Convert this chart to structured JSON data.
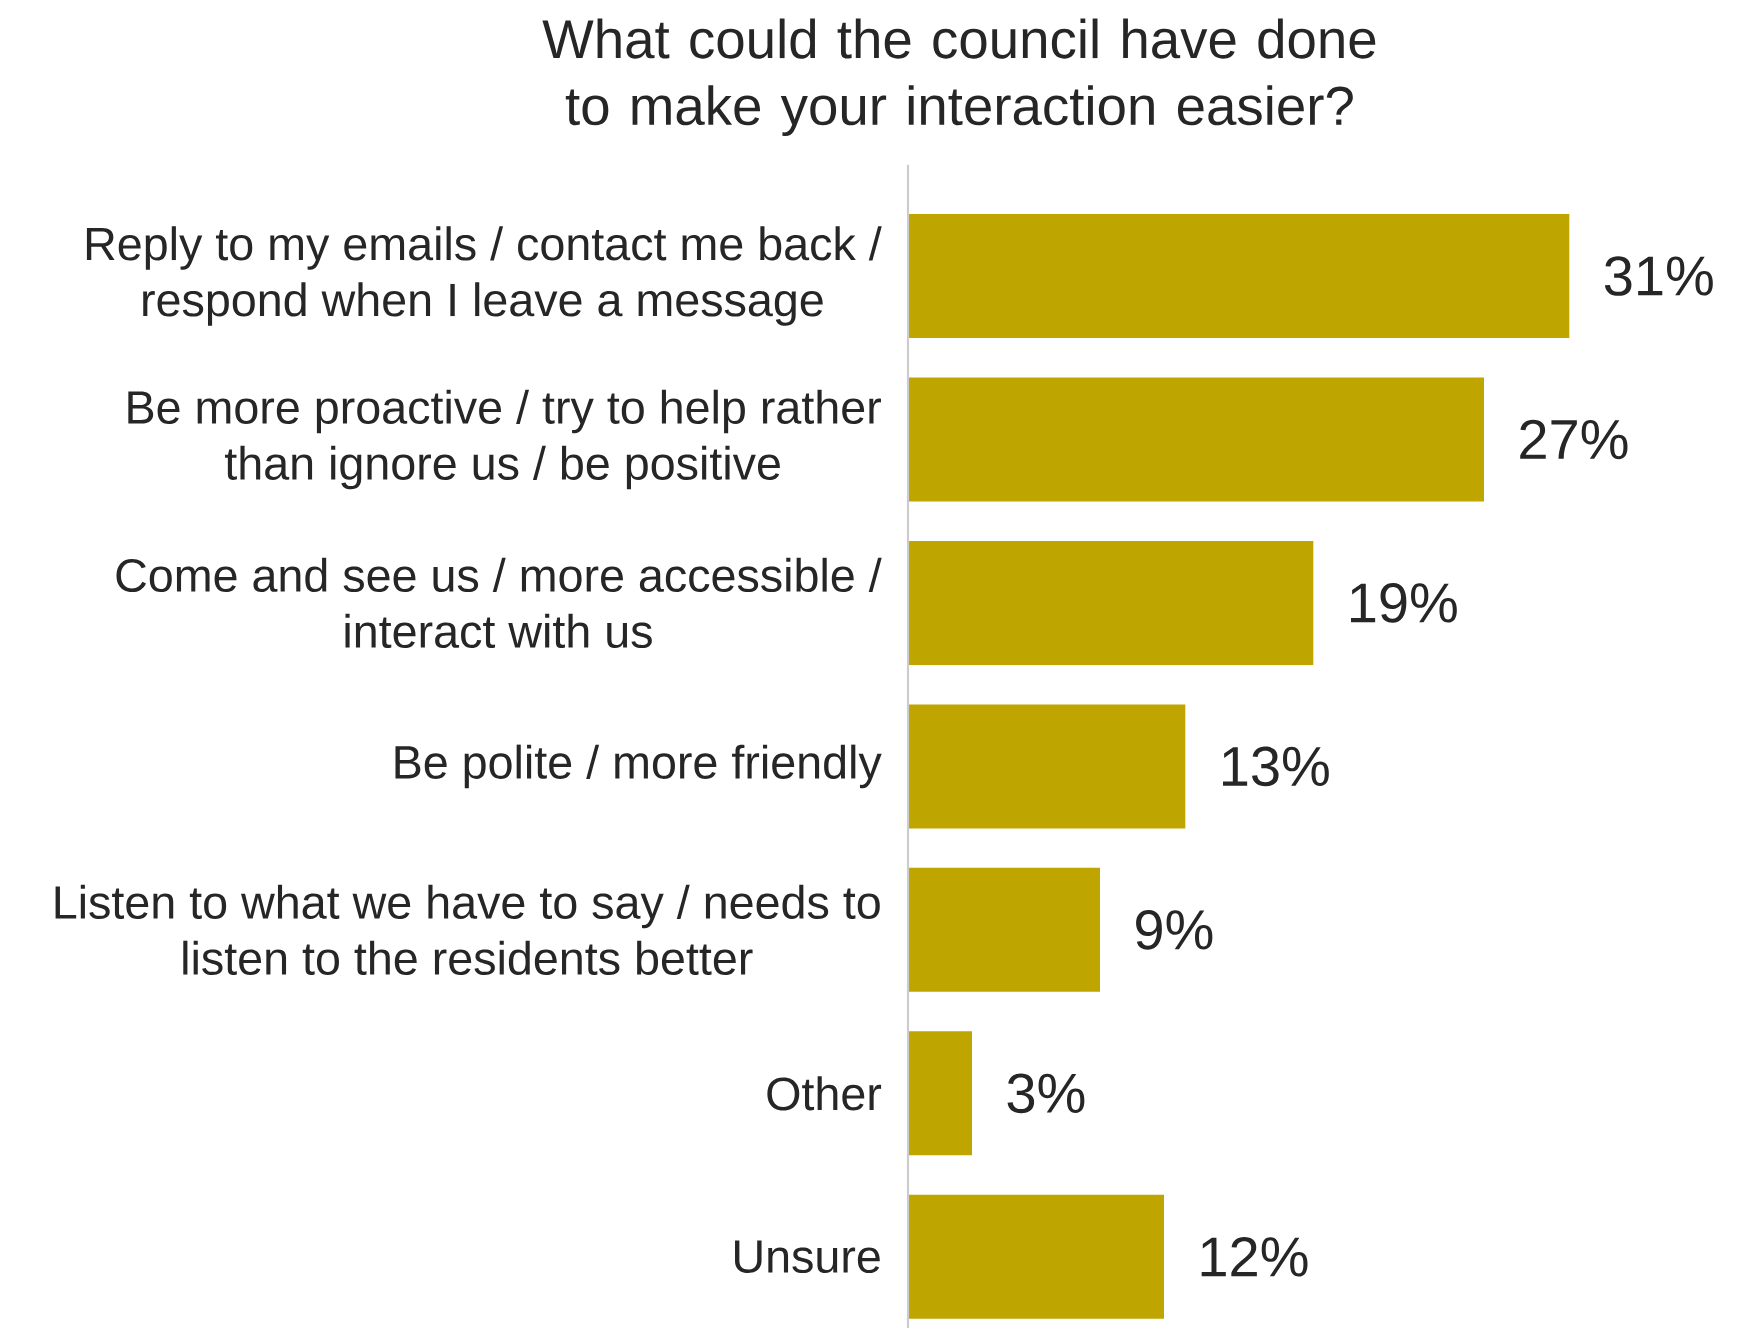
{
  "chart_data": {
    "type": "bar",
    "orientation": "horizontal",
    "title": "What could the council have done to make your interaction easier?",
    "categories": [
      "Reply to my emails / contact me back / respond when I leave a message",
      "Be more proactive / try to help rather than ignore us / be positive",
      "Come and see us / more accessible / interact with us",
      "Be polite / more friendly",
      "Listen to what we have to say  / needs to listen to the residents better",
      "Other",
      "Unsure"
    ],
    "values": [
      31,
      27,
      19,
      13,
      9,
      3,
      12
    ],
    "value_labels": [
      "31%",
      "27%",
      "19%",
      "13%",
      "9%",
      "3%",
      "12%"
    ],
    "color": "#bfa500",
    "grid": false,
    "tick_labels": "y"
  }
}
